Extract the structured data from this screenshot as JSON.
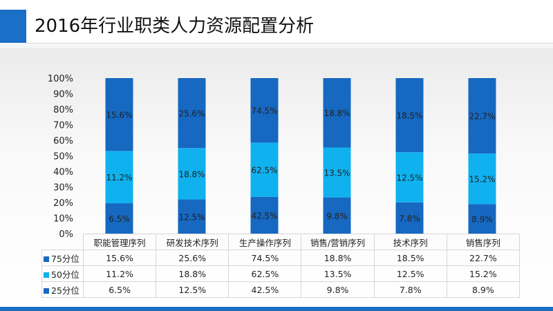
{
  "title": "2016年行业职类人力资源配置分析",
  "colors": {
    "accent": "#1a6fc7"
  },
  "chart_data": {
    "type": "bar",
    "stacked": "percent",
    "categories": [
      "职能管理序列",
      "研发技术序列",
      "生产操作序列",
      "销售/营销序列",
      "技术序列",
      "销售序列"
    ],
    "series": [
      {
        "name": "75分位",
        "color": "#1668c1",
        "values": [
          "15.6%",
          "25.6%",
          "74.5%",
          "18.8%",
          "18.5%",
          "22.7%"
        ]
      },
      {
        "name": "50分位",
        "color": "#10b1ef",
        "values": [
          "11.2%",
          "18.8%",
          "62.5%",
          "13.5%",
          "12.5%",
          "15.2%"
        ]
      },
      {
        "name": "25分位",
        "color": "#1668c1",
        "values": [
          "6.5%",
          "12.5%",
          "42.5%",
          "9.8%",
          "7.8%",
          "8.9%"
        ]
      }
    ],
    "y_ticks": [
      "100%",
      "90%",
      "80%",
      "70%",
      "60%",
      "50%",
      "40%",
      "30%",
      "20%",
      "10%",
      "0%"
    ],
    "ylim": [
      0,
      100
    ],
    "legend_placement": "data-table-left"
  }
}
